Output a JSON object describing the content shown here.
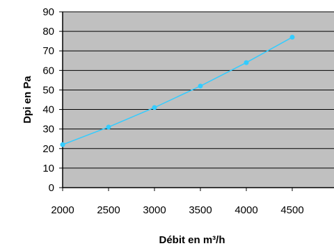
{
  "chart_data": {
    "type": "line",
    "title": "",
    "xlabel": "Débit en m³/h",
    "ylabel": "Dpi en Pa",
    "xlim": [
      2000,
      5000
    ],
    "ylim": [
      0,
      90
    ],
    "x_ticks": [
      2000,
      2500,
      3000,
      3500,
      4000,
      4500
    ],
    "y_ticks": [
      0,
      10,
      20,
      30,
      40,
      50,
      60,
      70,
      80,
      90
    ],
    "grid": "horizontal",
    "legend": "none",
    "series": [
      {
        "x": [
          2000,
          2500,
          3000,
          3500,
          4000,
          4500
        ],
        "values": [
          22,
          31,
          41,
          52,
          64,
          77
        ]
      }
    ],
    "colors": {
      "plot_background": "#c0c0c0",
      "gridline": "#000000",
      "line": "#33ccff",
      "marker": "#33ccff"
    }
  }
}
